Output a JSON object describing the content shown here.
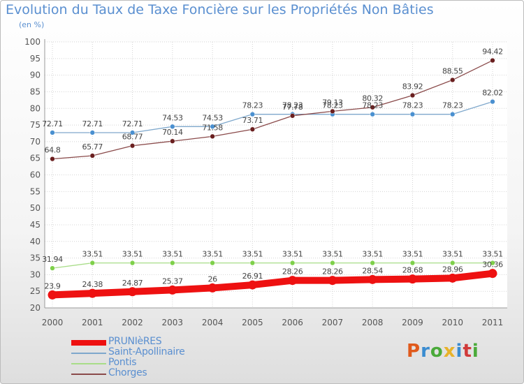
{
  "title": "Evolution du Taux de Taxe Foncière sur les Propriétés Non Bâties",
  "unit_label": "(en %)",
  "logo": {
    "text": "Proxiti",
    "letter_colors": [
      "#e05a1c",
      "#3a8cd0",
      "#4aaa3a",
      "#e8b22a",
      "#3a8cd0",
      "#d03a3a",
      "#4aaa3a"
    ]
  },
  "chart_data": {
    "type": "line",
    "title": "Evolution du Taux de Taxe Foncière sur les Propriétés Non Bâties",
    "ylabel": "(en %)",
    "x": [
      "2000",
      "2001",
      "2002",
      "2003",
      "2004",
      "2005",
      "2006",
      "2007",
      "2008",
      "2009",
      "2010",
      "2011"
    ],
    "ylim": [
      20,
      100
    ],
    "yticks": [
      "20",
      "25",
      "30",
      "35",
      "40",
      "45",
      "50",
      "55",
      "60",
      "65",
      "70",
      "75",
      "80",
      "85",
      "90",
      "95",
      "100"
    ],
    "grid": true,
    "legend_position": "bottom-left",
    "series": [
      {
        "name": "PRUNIèRES",
        "color": "#ee1111",
        "values": [
          23.9,
          24.38,
          24.87,
          25.37,
          26,
          26.91,
          28.26,
          28.26,
          28.54,
          28.68,
          28.96,
          30.36
        ],
        "labels": [
          "23.9",
          "24.38",
          "24.87",
          "25.37",
          "26",
          "26.91",
          "28.26",
          "28.26",
          "28.54",
          "28.68",
          "28.96",
          "30.36"
        ]
      },
      {
        "name": "Saint-Apollinaire",
        "color": "#7fa8cc",
        "values": [
          72.71,
          72.71,
          72.71,
          74.53,
          74.53,
          78.23,
          78.23,
          78.23,
          78.23,
          78.23,
          78.23,
          82.02
        ],
        "labels": [
          "72.71",
          "72.71",
          "72.71",
          "74.53",
          "74.53",
          "78.23",
          "78.23",
          "78.23",
          "78.23",
          "78.23",
          "78.23",
          "82.02"
        ]
      },
      {
        "name": "Pontis",
        "color": "#a8dd88",
        "values": [
          31.94,
          33.51,
          33.51,
          33.51,
          33.51,
          33.51,
          33.51,
          33.51,
          33.51,
          33.51,
          33.51,
          33.51
        ],
        "labels": [
          "31.94",
          "33.51",
          "33.51",
          "33.51",
          "33.51",
          "33.51",
          "33.51",
          "33.51",
          "33.51",
          "33.51",
          "33.51",
          "33.51"
        ]
      },
      {
        "name": "Chorges",
        "color": "#8a4a4a",
        "values": [
          64.8,
          65.77,
          68.77,
          70.14,
          71.58,
          73.71,
          77.78,
          79.13,
          80.32,
          83.92,
          88.55,
          94.42
        ],
        "labels": [
          "64.8",
          "65.77",
          "68.77",
          "70.14",
          "71.58",
          "73.71",
          "77.78",
          "79.13",
          "80.32",
          "83.92",
          "88.55",
          "94.42"
        ]
      }
    ]
  }
}
